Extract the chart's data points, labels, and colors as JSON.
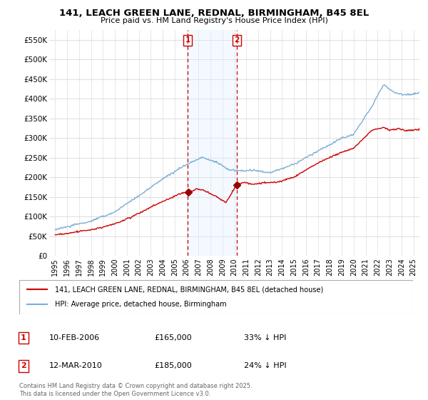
{
  "title_line1": "141, LEACH GREEN LANE, REDNAL, BIRMINGHAM, B45 8EL",
  "title_line2": "Price paid vs. HM Land Registry's House Price Index (HPI)",
  "background_color": "#ffffff",
  "plot_bg_color": "#ffffff",
  "grid_color": "#dddddd",
  "sale1_date_label": "10-FEB-2006",
  "sale1_price": 165000,
  "sale1_hpi_diff": "33% ↓ HPI",
  "sale2_date_label": "12-MAR-2010",
  "sale2_price": 185000,
  "sale2_hpi_diff": "24% ↓ HPI",
  "sale1_vline_x": 2006.11,
  "sale2_vline_x": 2010.19,
  "red_line_label": "141, LEACH GREEN LANE, REDNAL, BIRMINGHAM, B45 8EL (detached house)",
  "blue_line_label": "HPI: Average price, detached house, Birmingham",
  "footer": "Contains HM Land Registry data © Crown copyright and database right 2025.\nThis data is licensed under the Open Government Licence v3.0.",
  "ylim": [
    0,
    575000
  ],
  "yticks": [
    0,
    50000,
    100000,
    150000,
    200000,
    250000,
    300000,
    350000,
    400000,
    450000,
    500000,
    550000
  ],
  "ytick_labels": [
    "£0",
    "£50K",
    "£100K",
    "£150K",
    "£200K",
    "£250K",
    "£300K",
    "£350K",
    "£400K",
    "£450K",
    "£500K",
    "£550K"
  ],
  "xlim": [
    1994.5,
    2025.5
  ],
  "xtick_years": [
    1995,
    1996,
    1997,
    1998,
    1999,
    2000,
    2001,
    2002,
    2003,
    2004,
    2005,
    2006,
    2007,
    2008,
    2009,
    2010,
    2011,
    2012,
    2013,
    2014,
    2015,
    2016,
    2017,
    2018,
    2019,
    2020,
    2021,
    2022,
    2023,
    2024,
    2025
  ],
  "red_color": "#cc0000",
  "blue_color": "#7aafd4",
  "vline_color": "#cc0000",
  "span_color": "#ddeeff",
  "marker_color": "#990000"
}
